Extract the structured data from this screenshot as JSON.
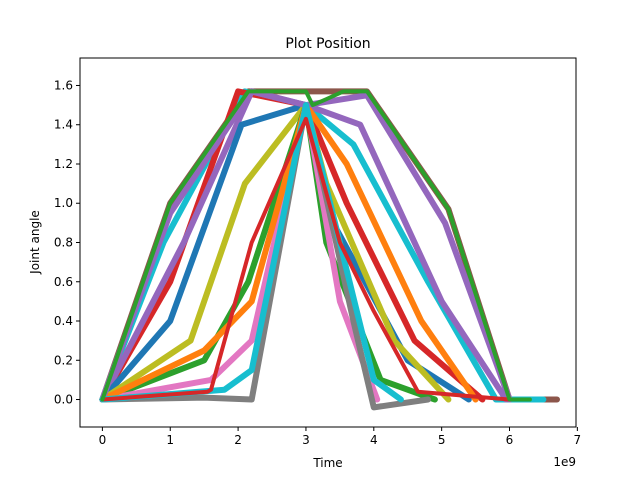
{
  "chart_data": {
    "type": "line",
    "title": "Plot Position",
    "xlabel": "Time",
    "ylabel": "Joint angle",
    "x_offset_label": "1e9",
    "xlim": [
      -0.33,
      6.98
    ],
    "ylim": [
      -0.14,
      1.74
    ],
    "xticks": [
      0,
      1,
      2,
      3,
      4,
      5,
      6,
      7
    ],
    "yticks": [
      0.0,
      0.2,
      0.4,
      0.6,
      0.8,
      1.0,
      1.2,
      1.4,
      1.6
    ],
    "ytick_labels": [
      "0.0",
      "0.2",
      "0.4",
      "0.6",
      "0.8",
      "1.0",
      "1.2",
      "1.4",
      "1.6"
    ],
    "grid": false,
    "palette": [
      "#1f77b4",
      "#ff7f0e",
      "#2ca02c",
      "#d62728",
      "#9467bd",
      "#8c564b",
      "#e377c2",
      "#7f7f7f",
      "#bcbd22",
      "#17becf"
    ],
    "series": [
      {
        "color": "#8c564b",
        "points": [
          [
            0,
            0
          ],
          [
            1.0,
            1.0
          ],
          [
            2.15,
            1.57
          ],
          [
            3.0,
            1.57
          ],
          [
            3.9,
            1.57
          ],
          [
            5.1,
            0.97
          ],
          [
            6.0,
            0
          ],
          [
            6.7,
            0
          ]
        ]
      },
      {
        "color": "#17becf",
        "points": [
          [
            0,
            0
          ],
          [
            0.9,
            0.8
          ],
          [
            2.1,
            1.57
          ],
          [
            3.0,
            1.5
          ],
          [
            3.7,
            1.3
          ],
          [
            4.8,
            0.6
          ],
          [
            5.8,
            0
          ],
          [
            6.5,
            0
          ]
        ]
      },
      {
        "color": "#d62728",
        "points": [
          [
            0,
            0
          ],
          [
            1.0,
            0.6
          ],
          [
            2.0,
            1.57
          ],
          [
            3.0,
            1.5
          ],
          [
            3.6,
            1.0
          ],
          [
            4.6,
            0.3
          ],
          [
            5.6,
            0
          ]
        ]
      },
      {
        "color": "#9467bd",
        "points": [
          [
            0,
            0
          ],
          [
            1.2,
            0.8
          ],
          [
            2.2,
            1.57
          ],
          [
            3.0,
            1.5
          ],
          [
            3.8,
            1.4
          ],
          [
            5.0,
            0.5
          ],
          [
            5.95,
            0
          ]
        ]
      },
      {
        "color": "#1f77b4",
        "points": [
          [
            0,
            0
          ],
          [
            1.0,
            0.4
          ],
          [
            2.05,
            1.4
          ],
          [
            3.0,
            1.5
          ],
          [
            3.4,
            0.9
          ],
          [
            4.5,
            0.2
          ],
          [
            5.4,
            0
          ]
        ]
      },
      {
        "color": "#bcbd22",
        "points": [
          [
            0,
            0
          ],
          [
            1.3,
            0.3
          ],
          [
            2.1,
            1.1
          ],
          [
            3.0,
            1.5
          ],
          [
            3.3,
            1.1
          ],
          [
            4.3,
            0.3
          ],
          [
            5.1,
            0
          ]
        ]
      },
      {
        "color": "#2ca02c",
        "points": [
          [
            0,
            0
          ],
          [
            1.5,
            0.2
          ],
          [
            2.15,
            0.6
          ],
          [
            3.0,
            1.5
          ],
          [
            3.3,
            0.8
          ],
          [
            4.1,
            0.1
          ],
          [
            4.9,
            0
          ]
        ]
      },
      {
        "color": "#e377c2",
        "points": [
          [
            0,
            0
          ],
          [
            1.6,
            0.1
          ],
          [
            2.2,
            0.3
          ],
          [
            3.0,
            1.5
          ],
          [
            3.5,
            0.5
          ],
          [
            4.05,
            0
          ]
        ]
      },
      {
        "color": "#ff7f0e",
        "points": [
          [
            0,
            0
          ],
          [
            1.5,
            0.25
          ],
          [
            2.2,
            0.5
          ],
          [
            3.0,
            1.5
          ],
          [
            3.6,
            1.2
          ],
          [
            4.7,
            0.4
          ],
          [
            5.5,
            0
          ]
        ]
      },
      {
        "color": "#7f7f7f",
        "points": [
          [
            0,
            0
          ],
          [
            1.5,
            0.01
          ],
          [
            2.2,
            0.0
          ],
          [
            3.0,
            1.5
          ],
          [
            3.7,
            0.4
          ],
          [
            4.0,
            -0.04
          ],
          [
            4.8,
            0
          ]
        ]
      },
      {
        "color": "#9467bd",
        "points": [
          [
            0,
            0
          ],
          [
            1.0,
            0.95
          ],
          [
            2.2,
            1.57
          ],
          [
            3.0,
            1.5
          ],
          [
            3.9,
            1.55
          ],
          [
            5.05,
            0.9
          ],
          [
            6.0,
            0
          ]
        ]
      },
      {
        "color": "#17becf",
        "points": [
          [
            0,
            0
          ],
          [
            1.8,
            0.05
          ],
          [
            2.2,
            0.15
          ],
          [
            3.0,
            1.5
          ],
          [
            4.0,
            0.1
          ],
          [
            4.4,
            0
          ]
        ]
      },
      {
        "color": "#d62728",
        "name": "",
        "points": [
          [
            0,
            0
          ],
          [
            1.55,
            0.04
          ],
          [
            1.6,
            0.05
          ],
          [
            2.2,
            0.8
          ],
          [
            3.0,
            1.43
          ],
          [
            3.5,
            0.8
          ],
          [
            4.0,
            0.45
          ],
          [
            4.65,
            0.04
          ],
          [
            6.0,
            0
          ]
        ]
      },
      {
        "color": "#2ca02c",
        "points": [
          [
            0,
            0
          ],
          [
            1.0,
            1.0
          ],
          [
            2.15,
            1.57
          ],
          [
            3.0,
            1.57
          ],
          [
            3.1,
            1.5
          ],
          [
            3.3,
            1.53
          ],
          [
            3.55,
            1.57
          ],
          [
            3.9,
            1.57
          ],
          [
            5.1,
            0.97
          ],
          [
            6.0,
            0
          ],
          [
            6.3,
            0
          ]
        ]
      }
    ]
  }
}
